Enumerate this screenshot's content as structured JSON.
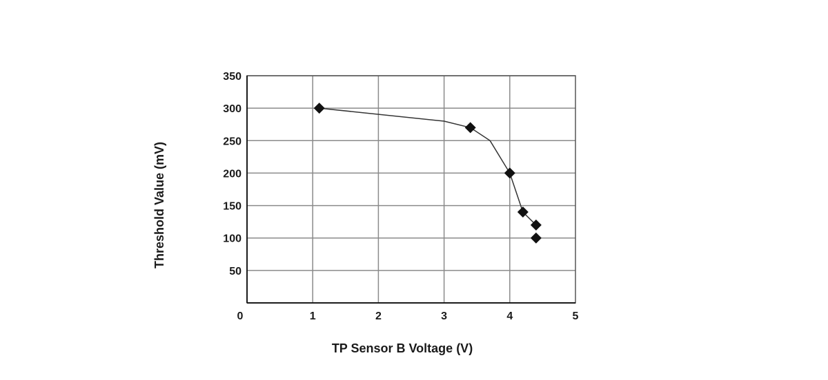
{
  "chart_data": {
    "type": "line",
    "title": "",
    "xlabel": "TP Sensor B Voltage (V)",
    "ylabel": "Threshold Value (mV)",
    "xlim": [
      0,
      5
    ],
    "ylim": [
      0,
      350
    ],
    "x_ticks": [
      "0",
      "1",
      "2",
      "3",
      "4",
      "5"
    ],
    "y_ticks": [
      "50",
      "100",
      "150",
      "200",
      "250",
      "300",
      "350"
    ],
    "grid": true,
    "legend": "none",
    "line_color": "#333333",
    "marker_color": "#111111",
    "marker": "diamond",
    "series": [
      {
        "x": [
          1.1,
          3.4,
          4.0,
          4.2,
          4.4,
          4.4
        ],
        "y": [
          300,
          270,
          200,
          140,
          120,
          100
        ]
      }
    ],
    "curve": {
      "x": [
        1.1,
        3.0,
        3.4,
        3.7,
        4.0,
        4.2,
        4.4
      ],
      "y": [
        300,
        280,
        270,
        250,
        200,
        140,
        120
      ]
    }
  }
}
